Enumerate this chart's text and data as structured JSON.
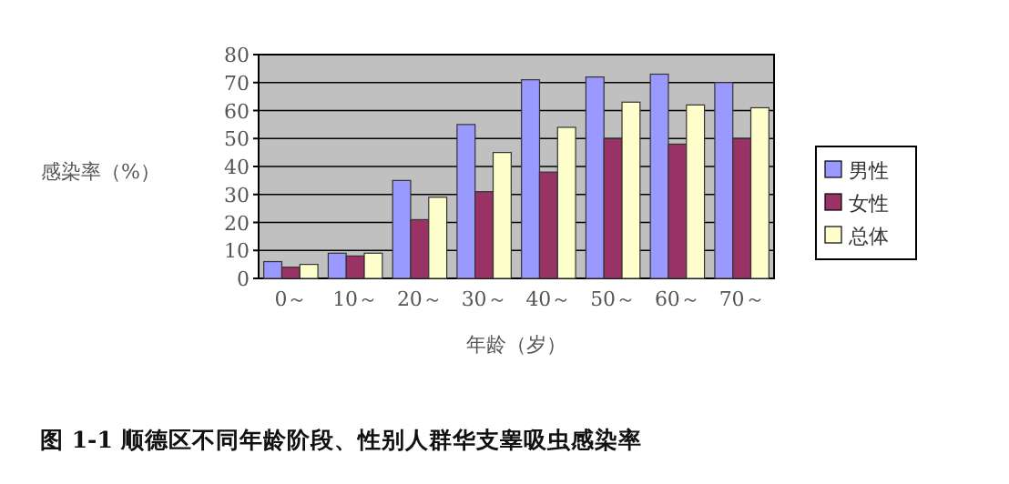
{
  "chart_data": {
    "type": "bar",
    "title": "图 1-1  顺德区不同年龄阶段、性别人群华支睾吸虫感染率",
    "xlabel": "年龄（岁）",
    "ylabel": "感染率（%）",
    "categories": [
      "0～",
      "10～",
      "20～",
      "30～",
      "40～",
      "50～",
      "60～",
      "70～"
    ],
    "series": [
      {
        "name": "男性",
        "color": "#9999ff",
        "values": [
          6,
          9,
          35,
          55,
          71,
          72,
          73,
          70
        ]
      },
      {
        "name": "女性",
        "color": "#993366",
        "values": [
          4,
          8,
          21,
          31,
          38,
          50,
          48,
          50
        ]
      },
      {
        "name": "总体",
        "color": "#ffffcc",
        "values": [
          5,
          9,
          29,
          45,
          54,
          63,
          62,
          61
        ]
      }
    ],
    "ylim": [
      0,
      80
    ],
    "yticks": [
      0,
      10,
      20,
      30,
      40,
      50,
      60,
      70,
      80
    ],
    "grid": "y",
    "legend": "right"
  }
}
